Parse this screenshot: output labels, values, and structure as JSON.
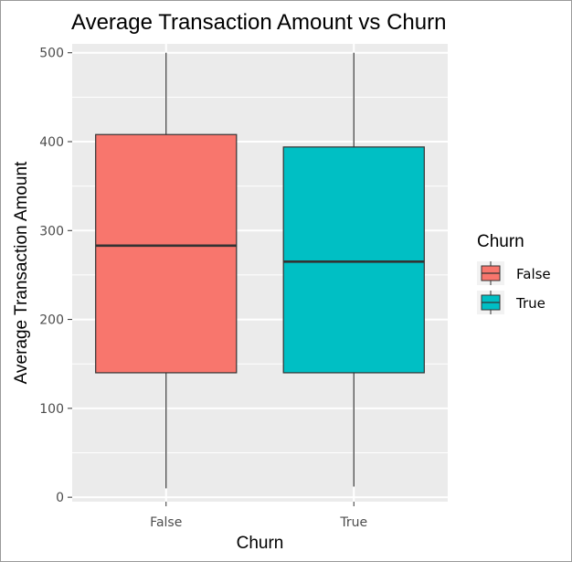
{
  "chart_data": {
    "type": "boxplot",
    "title": "Average Transaction Amount vs Churn",
    "xlabel": "Churn",
    "ylabel": "Average Transaction Amount",
    "ylim": [
      -5,
      510
    ],
    "y_ticks": [
      0,
      100,
      200,
      300,
      400,
      500
    ],
    "y_tick_labels": [
      "0",
      "100",
      "200",
      "300",
      "400",
      "500"
    ],
    "categories": [
      "False",
      "True"
    ],
    "series": [
      {
        "category": "False",
        "color": "#F8766D",
        "min": 10,
        "q1": 140,
        "median": 283,
        "q3": 408,
        "max": 500
      },
      {
        "category": "True",
        "color": "#00BFC4",
        "min": 12,
        "q1": 140,
        "median": 265,
        "q3": 394,
        "max": 500
      }
    ],
    "legend": {
      "title": "Churn",
      "position": "right",
      "entries": [
        {
          "label": "False",
          "color": "#F8766D"
        },
        {
          "label": "True",
          "color": "#00BFC4"
        }
      ]
    },
    "grid": true,
    "panel_background": "#EBEBEB",
    "grid_color": "#FFFFFF"
  }
}
